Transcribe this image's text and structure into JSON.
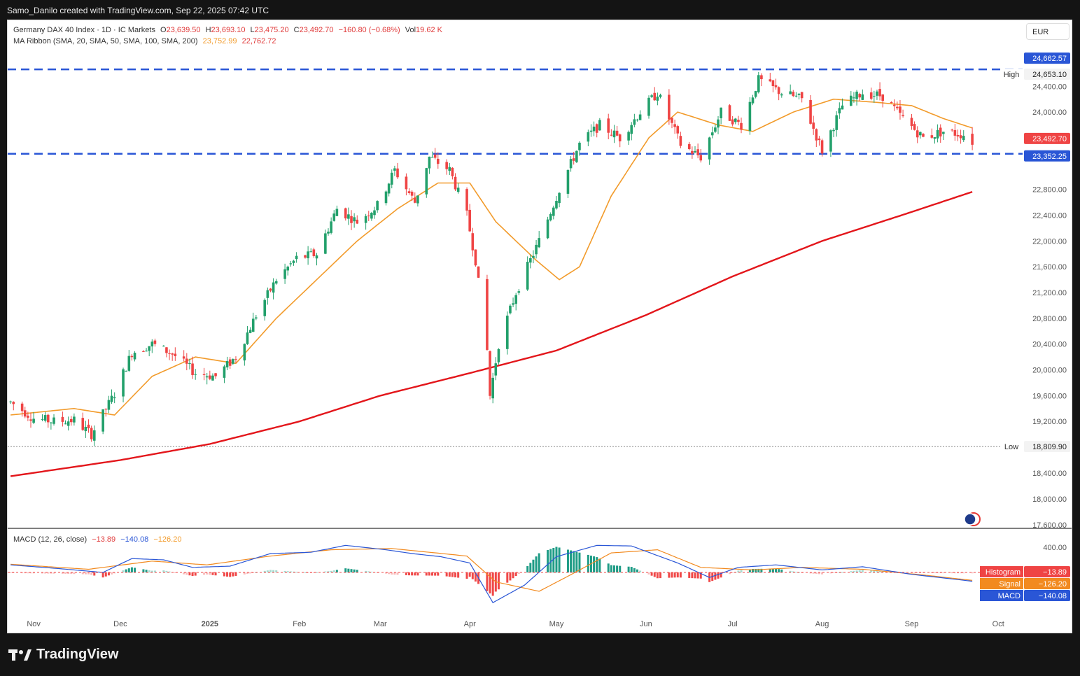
{
  "header": {
    "credit": "Samo_Danilo created with TradingView.com, Sep 22, 2025 07:42 UTC"
  },
  "legend": {
    "symbol": "Germany DAX 40 Index · 1D · IC Markets",
    "o_label": "O",
    "o_value": "23,639.50",
    "h_label": "H",
    "h_value": "23,693.10",
    "l_label": "L",
    "l_value": "23,475.20",
    "c_label": "C",
    "c_value": "23,492.70",
    "change": "−160.80 (−0.68%)",
    "vol_label": "Vol",
    "vol_value": "19.62 K",
    "ma_label": "MA Ribbon (SMA, 20, SMA, 50, SMA, 100, SMA, 200)",
    "ma_v1": "23,752.99",
    "ma_v2": "22,762.72",
    "macd_label": "MACD (12, 26, close)",
    "macd_hist": "−13.89",
    "macd_macd": "−140.08",
    "macd_signal": "−126.20"
  },
  "currency": "EUR",
  "footer": {
    "brand": "TradingView"
  },
  "colors": {
    "up": "#22a06b",
    "down": "#ef4444",
    "ma20": "#f29b2b",
    "ma200": "#e3161b",
    "dash": "#2a56d6",
    "macd": "#2a56d6",
    "signal": "#f28a1f"
  },
  "chart_data": [
    {
      "type": "candlestick",
      "title": "Germany DAX 40 Index · 1D · IC Markets",
      "y_ticks": [
        18000,
        18400,
        19200,
        19600,
        20000,
        20400,
        20800,
        21200,
        21600,
        22000,
        22400,
        22800,
        23600,
        24000,
        24400
      ],
      "y_tick_labels": [
        "18,000.00",
        "18,400.00",
        "19,200.00",
        "19,600.00",
        "20,000.00",
        "20,400.00",
        "20,800.00",
        "21,200.00",
        "21,600.00",
        "22,000.00",
        "22,400.00",
        "22,800.00",
        "23,600.00",
        "24,000.00",
        "24,400.00"
      ],
      "ylim": [
        17600,
        24750
      ],
      "x_labels": [
        "Nov",
        "Dec",
        "2025",
        "Feb",
        "Mar",
        "Apr",
        "May",
        "Jun",
        "Jul",
        "Aug",
        "Sep",
        "Oct"
      ],
      "x_label_dates": [
        "2024-11-01",
        "2024-12-01",
        "2025-01-01",
        "2025-02-01",
        "2025-03-01",
        "2025-04-01",
        "2025-05-01",
        "2025-06-01",
        "2025-07-01",
        "2025-08-01",
        "2025-09-01",
        "2025-10-01"
      ],
      "xlim": [
        "2024-10-23",
        "2025-10-07"
      ],
      "levels": [
        {
          "name": "High",
          "value": 24653.1,
          "label": "24,653.10"
        },
        {
          "name": "Low",
          "value": 18809.9,
          "label": "18,809.90"
        }
      ],
      "price_tags": [
        {
          "value": 24662.57,
          "label": "24,662.57"
        },
        {
          "value": 23492.7,
          "label": "23,492.70"
        },
        {
          "value": 23352.25,
          "label": "23,352.25"
        }
      ],
      "bottom_tick_label": "17,600.00",
      "close_path": [
        [
          "2024-10-24",
          19500
        ],
        [
          "2024-11-01",
          19250
        ],
        [
          "2024-11-08",
          19200
        ],
        [
          "2024-11-15",
          19220
        ],
        [
          "2024-11-21",
          19000
        ],
        [
          "2024-11-29",
          19630
        ],
        [
          "2024-12-05",
          20270
        ],
        [
          "2024-12-12",
          20400
        ],
        [
          "2024-12-19",
          20250
        ],
        [
          "2024-12-27",
          19950
        ],
        [
          "2025-01-03",
          19900
        ],
        [
          "2025-01-10",
          20200
        ],
        [
          "2025-01-17",
          20850
        ],
        [
          "2025-01-24",
          21400
        ],
        [
          "2025-01-31",
          21730
        ],
        [
          "2025-02-07",
          21800
        ],
        [
          "2025-02-14",
          22500
        ],
        [
          "2025-02-21",
          22300
        ],
        [
          "2025-02-28",
          22550
        ],
        [
          "2025-03-06",
          23100
        ],
        [
          "2025-03-13",
          22600
        ],
        [
          "2025-03-18",
          23300
        ],
        [
          "2025-03-25",
          23100
        ],
        [
          "2025-03-31",
          22400
        ],
        [
          "2025-04-03",
          21700
        ],
        [
          "2025-04-07",
          20300
        ],
        [
          "2025-04-08",
          19600
        ],
        [
          "2025-04-11",
          20400
        ],
        [
          "2025-04-17",
          21200
        ],
        [
          "2025-04-25",
          22000
        ],
        [
          "2025-05-02",
          22800
        ],
        [
          "2025-05-09",
          23500
        ],
        [
          "2025-05-16",
          23800
        ],
        [
          "2025-05-23",
          23600
        ],
        [
          "2025-05-30",
          24000
        ],
        [
          "2025-06-05",
          24300
        ],
        [
          "2025-06-13",
          23500
        ],
        [
          "2025-06-20",
          23300
        ],
        [
          "2025-06-27",
          24000
        ],
        [
          "2025-07-04",
          23800
        ],
        [
          "2025-07-10",
          24500
        ],
        [
          "2025-07-18",
          24300
        ],
        [
          "2025-07-25",
          24200
        ],
        [
          "2025-08-01",
          23400
        ],
        [
          "2025-08-08",
          24100
        ],
        [
          "2025-08-15",
          24300
        ],
        [
          "2025-08-22",
          24250
        ],
        [
          "2025-08-29",
          23900
        ],
        [
          "2025-09-05",
          23600
        ],
        [
          "2025-09-12",
          23700
        ],
        [
          "2025-09-19",
          23650
        ],
        [
          "2025-09-22",
          23492.7
        ]
      ],
      "ma20_path": [
        [
          "2024-10-24",
          19300
        ],
        [
          "2024-11-15",
          19400
        ],
        [
          "2024-11-29",
          19300
        ],
        [
          "2024-12-12",
          19900
        ],
        [
          "2024-12-27",
          20200
        ],
        [
          "2025-01-10",
          20100
        ],
        [
          "2025-01-24",
          20800
        ],
        [
          "2025-02-07",
          21400
        ],
        [
          "2025-02-21",
          22000
        ],
        [
          "2025-03-07",
          22500
        ],
        [
          "2025-03-21",
          22900
        ],
        [
          "2025-04-01",
          22900
        ],
        [
          "2025-04-10",
          22300
        ],
        [
          "2025-04-24",
          21700
        ],
        [
          "2025-05-02",
          21400
        ],
        [
          "2025-05-09",
          21600
        ],
        [
          "2025-05-20",
          22700
        ],
        [
          "2025-06-02",
          23600
        ],
        [
          "2025-06-12",
          24000
        ],
        [
          "2025-06-26",
          23800
        ],
        [
          "2025-07-08",
          23700
        ],
        [
          "2025-07-22",
          24000
        ],
        [
          "2025-08-05",
          24200
        ],
        [
          "2025-08-20",
          24150
        ],
        [
          "2025-09-01",
          24100
        ],
        [
          "2025-09-12",
          23900
        ],
        [
          "2025-09-22",
          23753
        ]
      ],
      "ma200_path": [
        [
          "2024-10-24",
          18350
        ],
        [
          "2024-12-01",
          18600
        ],
        [
          "2025-01-01",
          18850
        ],
        [
          "2025-02-01",
          19200
        ],
        [
          "2025-03-01",
          19600
        ],
        [
          "2025-04-01",
          19950
        ],
        [
          "2025-05-01",
          20300
        ],
        [
          "2025-06-01",
          20850
        ],
        [
          "2025-07-01",
          21450
        ],
        [
          "2025-08-01",
          22000
        ],
        [
          "2025-09-01",
          22450
        ],
        [
          "2025-09-22",
          22763
        ]
      ]
    },
    {
      "type": "bar",
      "title": "MACD (12, 26, close)",
      "y_ticks": [
        400
      ],
      "y_tick_labels": [
        "400.00"
      ],
      "ylim": [
        -640,
        560
      ],
      "series": [
        {
          "name": "MACD",
          "points": [
            [
              "2024-10-24",
              120
            ],
            [
              "2024-11-10",
              60
            ],
            [
              "2024-11-25",
              0
            ],
            [
              "2024-12-05",
              220
            ],
            [
              "2024-12-16",
              200
            ],
            [
              "2024-12-26",
              80
            ],
            [
              "2025-01-08",
              100
            ],
            [
              "2025-01-22",
              300
            ],
            [
              "2025-02-05",
              320
            ],
            [
              "2025-02-17",
              430
            ],
            [
              "2025-03-03",
              360
            ],
            [
              "2025-03-12",
              300
            ],
            [
              "2025-03-22",
              250
            ],
            [
              "2025-04-01",
              150
            ],
            [
              "2025-04-09",
              -480
            ],
            [
              "2025-04-20",
              -200
            ],
            [
              "2025-05-01",
              250
            ],
            [
              "2025-05-15",
              430
            ],
            [
              "2025-05-27",
              420
            ],
            [
              "2025-06-12",
              150
            ],
            [
              "2025-06-23",
              -80
            ],
            [
              "2025-07-03",
              80
            ],
            [
              "2025-07-16",
              120
            ],
            [
              "2025-08-01",
              40
            ],
            [
              "2025-08-15",
              90
            ],
            [
              "2025-09-01",
              -30
            ],
            [
              "2025-09-22",
              -140.08
            ]
          ]
        },
        {
          "name": "Signal",
          "points": [
            [
              "2024-10-24",
              130
            ],
            [
              "2024-11-20",
              50
            ],
            [
              "2024-12-12",
              180
            ],
            [
              "2024-12-31",
              120
            ],
            [
              "2025-01-22",
              260
            ],
            [
              "2025-02-12",
              360
            ],
            [
              "2025-03-05",
              380
            ],
            [
              "2025-03-31",
              260
            ],
            [
              "2025-04-10",
              -150
            ],
            [
              "2025-04-25",
              -300
            ],
            [
              "2025-05-05",
              -60
            ],
            [
              "2025-05-20",
              310
            ],
            [
              "2025-06-05",
              360
            ],
            [
              "2025-06-20",
              80
            ],
            [
              "2025-07-08",
              40
            ],
            [
              "2025-07-25",
              80
            ],
            [
              "2025-08-15",
              50
            ],
            [
              "2025-09-05",
              -40
            ],
            [
              "2025-09-22",
              -126.2
            ]
          ]
        },
        {
          "name": "Histogram",
          "points": []
        }
      ],
      "tags": [
        {
          "name": "Histogram",
          "label": "−13.89"
        },
        {
          "name": "Signal",
          "label": "−126.20"
        },
        {
          "name": "MACD",
          "label": "−140.08"
        }
      ]
    }
  ]
}
